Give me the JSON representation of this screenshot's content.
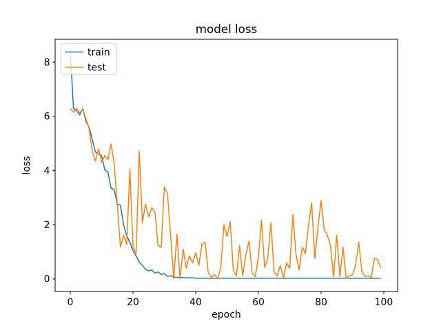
{
  "figure": {
    "title": "model loss",
    "xlabel": "epoch",
    "ylabel": "loss",
    "background_color": "#ffffff",
    "spine_color": "#000000"
  },
  "legend": {
    "position": "upper left",
    "entries": [
      {
        "label": "train",
        "color": "#1f77b4"
      },
      {
        "label": "test",
        "color": "#ff7f0e"
      }
    ]
  },
  "chart_data": {
    "type": "line",
    "title": "model loss",
    "xlabel": "epoch",
    "ylabel": "loss",
    "grid": false,
    "legend_position": "upper left",
    "xticks": [
      0,
      20,
      40,
      60,
      80,
      100
    ],
    "yticks": [
      0,
      2,
      4,
      6,
      8
    ],
    "xlim": [
      -4.84,
      104.4
    ],
    "ylim": [
      -0.46,
      8.84
    ],
    "x": [
      0,
      1,
      2,
      3,
      4,
      5,
      6,
      7,
      8,
      9,
      10,
      11,
      12,
      13,
      14,
      15,
      16,
      17,
      18,
      19,
      20,
      21,
      22,
      23,
      24,
      25,
      26,
      27,
      28,
      29,
      30,
      31,
      32,
      33,
      34,
      35,
      36,
      37,
      38,
      39,
      40,
      41,
      42,
      43,
      44,
      45,
      46,
      47,
      48,
      49,
      50,
      51,
      52,
      53,
      54,
      55,
      56,
      57,
      58,
      59,
      60,
      61,
      62,
      63,
      64,
      65,
      66,
      67,
      68,
      69,
      70,
      71,
      72,
      73,
      74,
      75,
      76,
      77,
      78,
      79,
      80,
      81,
      82,
      83,
      84,
      85,
      86,
      87,
      88,
      89,
      90,
      91,
      92,
      93,
      94,
      95,
      96,
      97,
      98,
      99
    ],
    "series": [
      {
        "name": "train",
        "color": "#1f77b4",
        "values": [
          8.43,
          6.3,
          6.2,
          6.05,
          6.28,
          5.8,
          5.6,
          5.15,
          4.68,
          4.62,
          4.55,
          4.02,
          3.95,
          3.35,
          3.3,
          2.76,
          2.72,
          2.0,
          1.6,
          1.35,
          1.05,
          0.85,
          0.62,
          0.5,
          0.35,
          0.3,
          0.33,
          0.22,
          0.26,
          0.16,
          0.2,
          0.1,
          0.12,
          0.07,
          0.06,
          0.05,
          0.05,
          0.04,
          0.04,
          0.04,
          0.03,
          0.03,
          0.03,
          0.03,
          0.03,
          0.03,
          0.03,
          0.03,
          0.03,
          0.03,
          0.03,
          0.03,
          0.03,
          0.03,
          0.03,
          0.03,
          0.03,
          0.03,
          0.03,
          0.03,
          0.03,
          0.03,
          0.03,
          0.03,
          0.03,
          0.03,
          0.03,
          0.03,
          0.03,
          0.03,
          0.03,
          0.03,
          0.03,
          0.03,
          0.03,
          0.03,
          0.03,
          0.03,
          0.03,
          0.03,
          0.03,
          0.03,
          0.03,
          0.03,
          0.03,
          0.03,
          0.03,
          0.03,
          0.03,
          0.03,
          0.03,
          0.03,
          0.03,
          0.03,
          0.03,
          0.03,
          0.03,
          0.03,
          0.03,
          0.03
        ]
      },
      {
        "name": "test",
        "color": "#ff7f0e",
        "values": [
          6.28,
          6.15,
          6.3,
          6.12,
          6.25,
          5.9,
          5.55,
          4.7,
          4.35,
          4.8,
          4.3,
          4.55,
          4.4,
          4.98,
          4.25,
          2.72,
          1.18,
          1.61,
          1.27,
          4.05,
          1.18,
          0.95,
          4.72,
          2.08,
          2.76,
          2.29,
          2.63,
          2.46,
          1.23,
          1.18,
          3.4,
          3.15,
          1.61,
          0.02,
          1.65,
          0.02,
          1.1,
          0.4,
          0.85,
          0.6,
          0.97,
          0.5,
          1.31,
          1.36,
          0.25,
          0.05,
          0.16,
          0.02,
          0.42,
          2.0,
          1.57,
          2.12,
          0.33,
          0.12,
          1.23,
          0.12,
          0.89,
          1.4,
          0.25,
          0.08,
          0.8,
          2.17,
          0.42,
          0.76,
          2.08,
          0.25,
          0.12,
          0.5,
          0.02,
          0.59,
          0.4,
          2.38,
          0.9,
          0.33,
          1.18,
          0.93,
          2.0,
          2.81,
          0.76,
          1.9,
          2.89,
          1.82,
          1.61,
          1.23,
          0.08,
          1.61,
          0.08,
          1.18,
          0.02,
          0.12,
          0.15,
          0.5,
          1.36,
          0.29,
          0.08,
          0.12,
          0.05,
          0.76,
          0.72,
          0.42
        ]
      }
    ]
  }
}
